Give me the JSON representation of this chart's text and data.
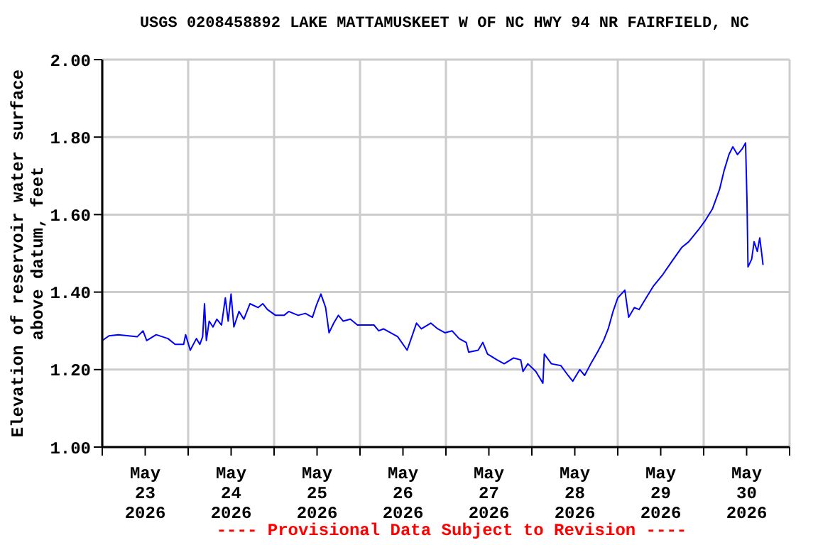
{
  "chart_data": {
    "type": "line",
    "title": "USGS 0208458892 LAKE MATTAMUSKEET W OF NC HWY 94 NR FAIRFIELD, NC",
    "ylabel": "Elevation of reservoir water surface\nabove datum, feet",
    "annotations": [
      "---- Provisional Data Subject to Revision ----"
    ],
    "color": "#0000ff",
    "grid": true,
    "x": [
      "2026-05-23T00:00",
      "2026-05-23T01:52",
      "2026-05-23T04:29",
      "2026-05-23T09:48",
      "2026-05-23T11:23",
      "2026-05-23T12:25",
      "2026-05-23T15:04",
      "2026-05-23T18:22",
      "2026-05-23T20:21",
      "2026-05-23T22:44",
      "2026-05-23T23:17",
      "2026-05-24T00:35",
      "2026-05-24T02:18",
      "2026-05-24T03:15",
      "2026-05-24T04:03",
      "2026-05-24T04:34",
      "2026-05-24T05:05",
      "2026-05-24T05:52",
      "2026-05-24T06:56",
      "2026-05-24T08:01",
      "2026-05-24T09:19",
      "2026-05-24T10:23",
      "2026-05-24T11:11",
      "2026-05-24T11:59",
      "2026-05-24T12:46",
      "2026-05-24T14:12",
      "2026-05-24T15:33",
      "2026-05-24T17:16",
      "2026-05-24T19:31",
      "2026-05-24T20:50",
      "2026-05-24T22:08",
      "2026-05-25T00:24",
      "2026-05-25T02:47",
      "2026-05-25T04:05",
      "2026-05-25T06:44",
      "2026-05-25T08:44",
      "2026-05-25T10:43",
      "2026-05-25T11:47",
      "2026-05-25T13:05",
      "2026-05-25T14:24",
      "2026-05-25T15:21",
      "2026-05-25T16:40",
      "2026-05-25T17:58",
      "2026-05-25T19:19",
      "2026-05-25T21:18",
      "2026-05-25T23:17",
      "2026-05-26T03:53",
      "2026-05-26T05:14",
      "2026-05-26T06:33",
      "2026-05-26T08:32",
      "2026-05-26T10:31",
      "2026-05-26T13:10",
      "2026-05-26T14:29",
      "2026-05-26T15:47",
      "2026-05-26T17:08",
      "2026-05-26T19:46",
      "2026-05-26T21:44",
      "2026-05-26T23:43",
      "2026-05-27T01:43",
      "2026-05-27T03:41",
      "2026-05-27T05:40",
      "2026-05-27T06:21",
      "2026-05-27T09:00",
      "2026-05-27T10:19",
      "2026-05-27T11:37",
      "2026-05-27T14:17",
      "2026-05-27T16:16",
      "2026-05-27T18:55",
      "2026-05-27T20:54",
      "2026-05-27T21:32",
      "2026-05-27T22:53",
      "2026-05-28T01:07",
      "2026-05-28T03:05",
      "2026-05-28T03:29",
      "2026-05-28T05:28",
      "2026-05-28T08:08",
      "2026-05-28T10:07",
      "2026-05-28T11:25",
      "2026-05-28T13:24",
      "2026-05-28T14:45",
      "2026-05-28T16:28",
      "2026-05-28T18:20",
      "2026-05-28T20:02",
      "2026-05-28T21:20",
      "2026-05-28T22:41",
      "2026-05-29T00:00",
      "2026-05-29T01:59",
      "2026-05-29T03:03",
      "2026-05-29T04:38",
      "2026-05-29T05:57",
      "2026-05-29T07:56",
      "2026-05-29T09:55",
      "2026-05-29T12:34",
      "2026-05-29T15:11",
      "2026-05-29T17:51",
      "2026-05-29T19:50",
      "2026-05-29T22:29",
      "2026-05-30T00:28",
      "2026-05-30T02:28",
      "2026-05-30T04:26",
      "2026-05-30T05:45",
      "2026-05-30T07:04",
      "2026-05-30T08:08",
      "2026-05-30T09:26",
      "2026-05-30T10:47",
      "2026-05-30T11:42",
      "2026-05-30T12:06",
      "2026-05-30T12:23",
      "2026-05-30T13:25",
      "2026-05-30T14:05",
      "2026-05-30T14:59",
      "2026-05-30T15:40",
      "2026-05-30T16:20",
      "2026-05-30T16:35"
    ],
    "values": [
      1.275,
      1.287,
      1.29,
      1.285,
      1.3,
      1.275,
      1.29,
      1.28,
      1.265,
      1.265,
      1.29,
      1.25,
      1.28,
      1.265,
      1.285,
      1.37,
      1.275,
      1.325,
      1.31,
      1.33,
      1.315,
      1.385,
      1.325,
      1.395,
      1.31,
      1.35,
      1.33,
      1.37,
      1.36,
      1.37,
      1.355,
      1.34,
      1.34,
      1.35,
      1.34,
      1.345,
      1.335,
      1.365,
      1.395,
      1.36,
      1.295,
      1.32,
      1.34,
      1.325,
      1.33,
      1.315,
      1.315,
      1.3,
      1.305,
      1.295,
      1.285,
      1.25,
      1.285,
      1.32,
      1.305,
      1.32,
      1.305,
      1.295,
      1.3,
      1.28,
      1.27,
      1.245,
      1.25,
      1.27,
      1.24,
      1.225,
      1.215,
      1.23,
      1.225,
      1.195,
      1.215,
      1.195,
      1.165,
      1.24,
      1.215,
      1.21,
      1.185,
      1.17,
      1.2,
      1.185,
      1.215,
      1.245,
      1.275,
      1.305,
      1.35,
      1.385,
      1.405,
      1.335,
      1.36,
      1.355,
      1.385,
      1.415,
      1.445,
      1.48,
      1.515,
      1.53,
      1.56,
      1.585,
      1.615,
      1.665,
      1.715,
      1.755,
      1.775,
      1.755,
      1.77,
      1.785,
      1.635,
      1.465,
      1.485,
      1.53,
      1.505,
      1.54,
      1.49,
      1.47
    ],
    "xlim": [
      "2026-05-23T00:00",
      "2026-05-31T00:00"
    ],
    "xticks": [
      {
        "value": "2026-05-23T00:00",
        "label": null
      },
      {
        "value": "2026-05-23T12:00",
        "label": "May\n23\n2026"
      },
      {
        "value": "2026-05-24T00:00",
        "label": null
      },
      {
        "value": "2026-05-24T12:00",
        "label": "May\n24\n2026"
      },
      {
        "value": "2026-05-25T00:00",
        "label": null
      },
      {
        "value": "2026-05-25T12:00",
        "label": "May\n25\n2026"
      },
      {
        "value": "2026-05-26T00:00",
        "label": null
      },
      {
        "value": "2026-05-26T12:00",
        "label": "May\n26\n2026"
      },
      {
        "value": "2026-05-27T00:00",
        "label": null
      },
      {
        "value": "2026-05-27T12:00",
        "label": "May\n27\n2026"
      },
      {
        "value": "2026-05-28T00:00",
        "label": null
      },
      {
        "value": "2026-05-28T12:00",
        "label": "May\n28\n2026"
      },
      {
        "value": "2026-05-29T00:00",
        "label": null
      },
      {
        "value": "2026-05-29T12:00",
        "label": "May\n29\n2026"
      },
      {
        "value": "2026-05-30T00:00",
        "label": null
      },
      {
        "value": "2026-05-30T12:00",
        "label": "May\n30\n2026"
      },
      {
        "value": "2026-05-31T00:00",
        "label": null
      }
    ],
    "ylim": [
      1.0,
      2.0
    ],
    "yticks": [
      {
        "value": 1.0,
        "label": "1.00"
      },
      {
        "value": 1.2,
        "label": "1.20"
      },
      {
        "value": 1.4,
        "label": "1.40"
      },
      {
        "value": 1.6,
        "label": "1.60"
      },
      {
        "value": 1.8,
        "label": "1.80"
      },
      {
        "value": 2.0,
        "label": "2.00"
      }
    ]
  }
}
